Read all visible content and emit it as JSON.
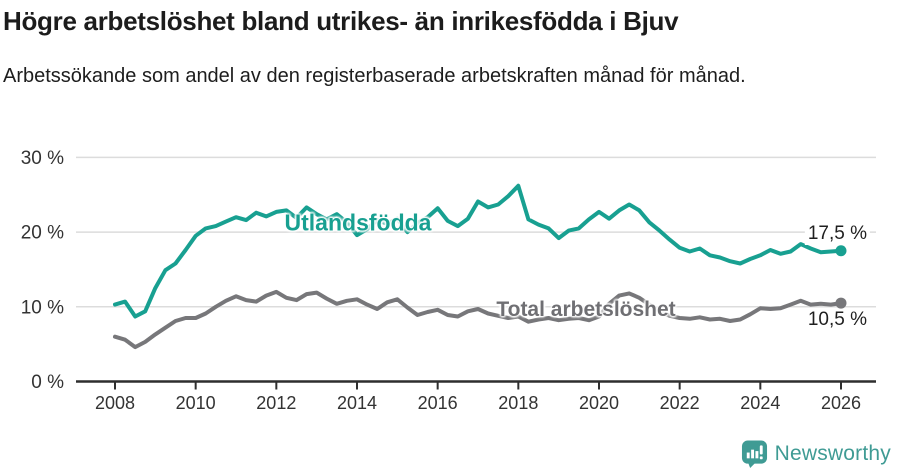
{
  "header": {
    "title": "Högre arbetslöshet bland utrikes- än inrikesfödda i Bjuv",
    "subtitle": "Arbetssökande som andel av den registerbaserade arbetskraften månad för månad."
  },
  "colors": {
    "series_foreign_born": "#18A091",
    "series_total": "#77777A",
    "grid": "#DCDCDC",
    "axis": "#2E2E2E",
    "tick_text": "#333333",
    "title_text": "#1C1C1C",
    "logo_teal": "#3F9B94"
  },
  "chart_data": {
    "type": "line",
    "title": "Högre arbetslöshet bland utrikes- än inrikesfödda i Bjuv",
    "subtitle": "Arbetssökande som andel av den registerbaserade arbetskraften månad för månad.",
    "unit": "%",
    "grid": true,
    "legend_position": "inline-labels",
    "x_axis": {
      "ticks": [
        2008,
        2010,
        2012,
        2014,
        2016,
        2018,
        2020,
        2022,
        2024,
        2026
      ]
    },
    "y_axis": {
      "range": [
        0,
        30
      ],
      "ticks": [
        {
          "value": 0,
          "label": "0 %"
        },
        {
          "value": 10,
          "label": "10 %"
        },
        {
          "value": 20,
          "label": "20 %"
        },
        {
          "value": 30,
          "label": "30 %"
        }
      ]
    },
    "series": [
      {
        "name": "Utlandsfödda",
        "color": "#18A091",
        "end_label": "17,5 %",
        "end_value": 17.5,
        "start_year": 2008,
        "step_years": 0.25,
        "values": [
          10.3,
          10.7,
          8.7,
          9.4,
          12.5,
          14.9,
          15.8,
          17.6,
          19.5,
          20.5,
          20.8,
          21.4,
          22.0,
          21.6,
          22.6,
          22.1,
          22.7,
          22.9,
          21.9,
          23.3,
          22.4,
          21.7,
          22.4,
          21.3,
          19.6,
          20.4,
          21.6,
          21.1,
          21.8,
          20.0,
          21.2,
          22.0,
          23.2,
          21.5,
          20.8,
          21.8,
          24.1,
          23.3,
          23.7,
          24.8,
          26.2,
          21.7,
          21.0,
          20.5,
          19.2,
          20.2,
          20.5,
          21.7,
          22.7,
          21.8,
          22.9,
          23.7,
          22.9,
          21.3,
          20.2,
          19.0,
          17.9,
          17.4,
          17.8,
          16.9,
          16.6,
          16.1,
          15.8,
          16.4,
          16.9,
          17.6,
          17.1,
          17.4,
          18.4,
          17.8,
          17.3,
          17.4,
          17.5
        ]
      },
      {
        "name": "Total arbetslöshet",
        "color": "#77777A",
        "end_label": "10,5 %",
        "end_value": 10.5,
        "start_year": 2008,
        "step_years": 0.25,
        "values": [
          6.0,
          5.6,
          4.6,
          5.3,
          6.3,
          7.2,
          8.1,
          8.5,
          8.5,
          9.1,
          10.0,
          10.8,
          11.4,
          10.9,
          10.7,
          11.5,
          12.0,
          11.2,
          10.9,
          11.7,
          11.9,
          11.1,
          10.4,
          10.8,
          11.0,
          10.3,
          9.7,
          10.6,
          11.0,
          9.9,
          8.9,
          9.3,
          9.6,
          8.9,
          8.7,
          9.4,
          9.7,
          9.1,
          8.8,
          8.5,
          8.7,
          8.0,
          8.3,
          8.5,
          8.2,
          8.4,
          8.5,
          8.2,
          8.7,
          10.4,
          11.5,
          11.8,
          11.2,
          10.3,
          9.4,
          8.8,
          8.5,
          8.4,
          8.6,
          8.3,
          8.4,
          8.1,
          8.3,
          9.0,
          9.8,
          9.7,
          9.8,
          10.3,
          10.8,
          10.3,
          10.4,
          10.3,
          10.5
        ]
      }
    ]
  },
  "footer": {
    "brand": "Newsworthy",
    "logo_icon": "bar-chart-speech-bubble-icon"
  }
}
